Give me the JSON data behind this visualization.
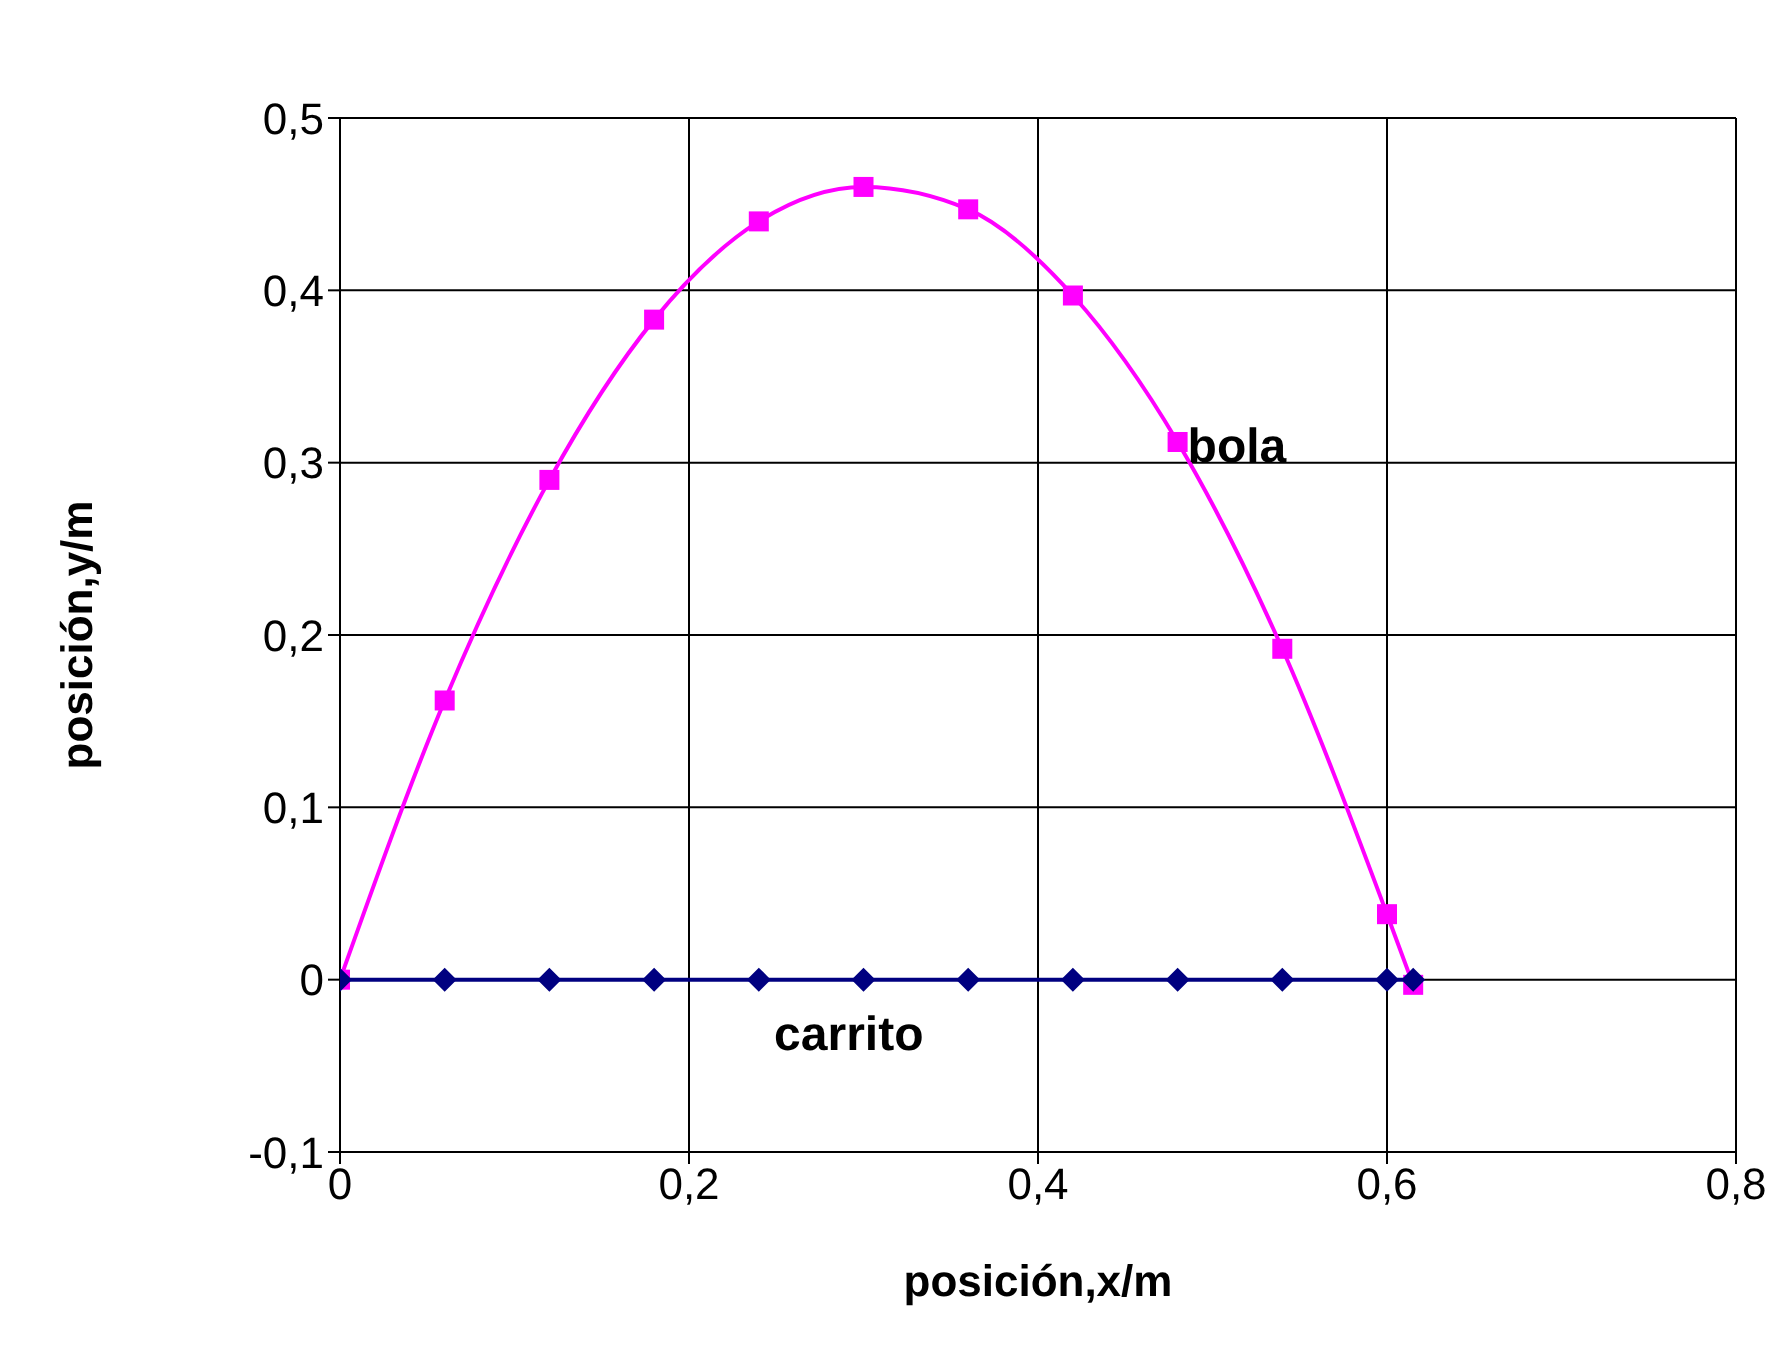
{
  "chart_data": {
    "type": "line",
    "xlabel": "posición,x/m",
    "ylabel": "posición,y/m",
    "xlim": [
      0,
      0.8
    ],
    "xticks": [
      {
        "value": 0,
        "label": "0"
      },
      {
        "value": 0.2,
        "label": "0,2"
      },
      {
        "value": 0.4,
        "label": "0,4"
      },
      {
        "value": 0.6,
        "label": "0,6"
      },
      {
        "value": 0.8,
        "label": "0,8"
      }
    ],
    "ylim": [
      -0.1,
      0.5
    ],
    "yticks": [
      {
        "value": -0.1,
        "label": "-0,1"
      },
      {
        "value": 0,
        "label": "0"
      },
      {
        "value": 0.1,
        "label": "0,1"
      },
      {
        "value": 0.2,
        "label": "0,2"
      },
      {
        "value": 0.3,
        "label": "0,3"
      },
      {
        "value": 0.4,
        "label": "0,4"
      },
      {
        "value": 0.5,
        "label": "0,5"
      }
    ],
    "grid": true,
    "series": [
      {
        "color": "#ff00ff",
        "marker": "square",
        "x": [
          0,
          0.06,
          0.12,
          0.18,
          0.24,
          0.3,
          0.36,
          0.42,
          0.48,
          0.54,
          0.6,
          0.615
        ],
        "values": [
          0,
          0.162,
          0.29,
          0.383,
          0.44,
          0.46,
          0.447,
          0.397,
          0.312,
          0.192,
          0.038,
          -0.003
        ]
      },
      {
        "color": "#000080",
        "marker": "diamond",
        "x": [
          0,
          0.06,
          0.12,
          0.18,
          0.24,
          0.3,
          0.36,
          0.42,
          0.48,
          0.54,
          0.6,
          0.615
        ],
        "values": [
          0,
          0,
          0,
          0,
          0,
          0,
          0,
          0,
          0,
          0,
          0,
          0
        ]
      }
    ],
    "annotations": [
      {
        "text": "bola",
        "x": 0.48,
        "y": 0.31
      },
      {
        "text": "carrito",
        "x": 0.24,
        "y": 0
      }
    ]
  }
}
